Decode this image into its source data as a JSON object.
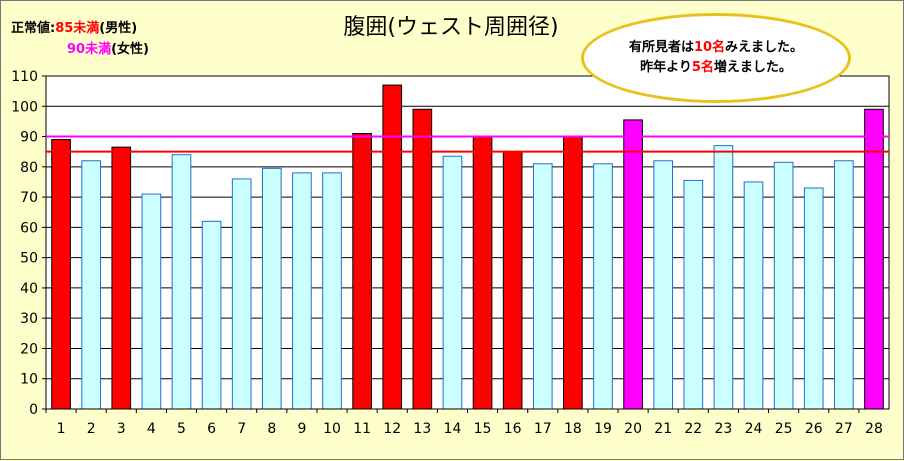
{
  "chart_data": {
    "type": "bar",
    "title": "腹囲(ウェスト周囲径)",
    "xlabel": "",
    "ylabel": "",
    "ylim": [
      0,
      110
    ],
    "yticks": [
      0,
      10,
      20,
      30,
      40,
      50,
      60,
      70,
      80,
      90,
      100,
      110
    ],
    "grid": true,
    "categories": [
      "1",
      "2",
      "3",
      "4",
      "5",
      "6",
      "7",
      "8",
      "9",
      "10",
      "11",
      "12",
      "13",
      "14",
      "15",
      "16",
      "17",
      "18",
      "19",
      "20",
      "21",
      "22",
      "23",
      "24",
      "25",
      "26",
      "27",
      "28"
    ],
    "values": [
      89,
      82,
      86.5,
      71,
      84,
      62,
      76,
      79.5,
      78,
      78,
      91,
      107,
      99,
      83.5,
      90,
      85,
      81,
      90,
      81,
      95.5,
      82,
      75.5,
      87,
      75,
      81.5,
      73,
      82,
      99
    ],
    "bar_status": [
      "over-male",
      "normal",
      "over-male",
      "normal",
      "normal",
      "normal",
      "normal",
      "normal",
      "normal",
      "normal",
      "over-male",
      "over-male",
      "over-male",
      "normal",
      "over-male",
      "over-male",
      "normal",
      "over-male",
      "normal",
      "over-female",
      "normal",
      "normal",
      "normal",
      "normal",
      "normal",
      "normal",
      "normal",
      "over-female"
    ],
    "reference_lines": [
      {
        "value": 85,
        "color": "#ff0000"
      },
      {
        "value": 90,
        "color": "#ff00ff"
      }
    ],
    "colors": {
      "normal": "#ccffff",
      "over-male": "#ff0000",
      "over-female": "#ff00ff"
    }
  },
  "legend": {
    "male": {
      "prefix": "正常値:",
      "value": "85未満",
      "suffix": "(男性)",
      "color": "#ff0000"
    },
    "female": {
      "value": "90未満",
      "suffix": "(女性)",
      "color": "#ff00ff"
    }
  },
  "note": {
    "line1_prefix": "有所見者は",
    "line1_value": "10名",
    "line1_suffix": "みえました。",
    "line2_prefix": "昨年より",
    "line2_value": "5名",
    "line2_suffix": "増えました。",
    "value_color": "#ff0000"
  }
}
